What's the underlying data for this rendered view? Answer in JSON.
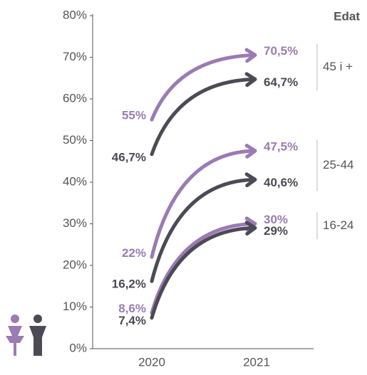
{
  "chart_data": {
    "type": "slope-arrows",
    "legend_title": "Edat",
    "categories": [
      "2020",
      "2021"
    ],
    "ylim": [
      0,
      80
    ],
    "yticks": [
      {
        "value": 0,
        "label": "0%"
      },
      {
        "value": 10,
        "label": "10%"
      },
      {
        "value": 20,
        "label": "20%"
      },
      {
        "value": 30,
        "label": "30%"
      },
      {
        "value": 40,
        "label": "40%"
      },
      {
        "value": 50,
        "label": "50%"
      },
      {
        "value": 60,
        "label": "60%"
      },
      {
        "value": 70,
        "label": "70%"
      },
      {
        "value": 80,
        "label": "80%"
      }
    ],
    "groups": [
      {
        "label": "45 i +",
        "series": [
          {
            "color": "#9b7bb4",
            "values": [
              55,
              70.5
            ],
            "value_labels": [
              "55%",
              "70,5%"
            ]
          },
          {
            "color": "#4b4a55",
            "values": [
              46.7,
              64.7
            ],
            "value_labels": [
              "46,7%",
              "64,7%"
            ]
          }
        ]
      },
      {
        "label": "25-44",
        "series": [
          {
            "color": "#9b7bb4",
            "values": [
              22,
              47.5
            ],
            "value_labels": [
              "22%",
              "47,5%"
            ]
          },
          {
            "color": "#4b4a55",
            "values": [
              16.2,
              40.6
            ],
            "value_labels": [
              "16,2%",
              "40,6%"
            ]
          }
        ]
      },
      {
        "label": "16-24",
        "series": [
          {
            "color": "#9b7bb4",
            "values": [
              8.6,
              30
            ],
            "value_labels": [
              "8,6%",
              "30%"
            ]
          },
          {
            "color": "#4b4a55",
            "values": [
              7.4,
              29
            ],
            "value_labels": [
              "7,4%",
              "29%"
            ]
          }
        ]
      }
    ]
  }
}
